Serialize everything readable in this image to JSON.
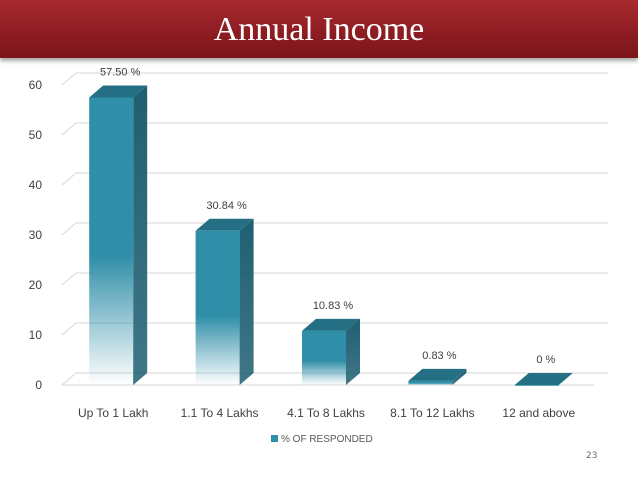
{
  "slide": {
    "title": "Annual Income",
    "page_number": "23"
  },
  "colors": {
    "banner": "#8c1c21",
    "bar_front": "#2f8ea8",
    "bar_side": "#1f5f72",
    "bar_top": "#256f85",
    "grid": "#d6d6d6",
    "text": "#404040"
  },
  "chart_data": {
    "type": "bar",
    "title": "Annual Income",
    "categories": [
      "Up To 1 Lakh",
      "1.1 To 4 Lakhs",
      "4.1 To 8 Lakhs",
      "8.1 To 12 Lakhs",
      "12 and above"
    ],
    "series": [
      {
        "name": "% OF RESPONDED",
        "values": [
          57.5,
          30.84,
          10.83,
          0.83,
          0
        ],
        "data_labels": [
          "57.50 %",
          "30.84 %",
          "10.83 %",
          "0.83 %",
          "0 %"
        ]
      }
    ],
    "yticks": [
      "0",
      "10",
      "20",
      "30",
      "40",
      "50",
      "60"
    ],
    "ylim": [
      0,
      60
    ],
    "grid": true,
    "legend_position": "bottom",
    "style": "3d-column"
  }
}
